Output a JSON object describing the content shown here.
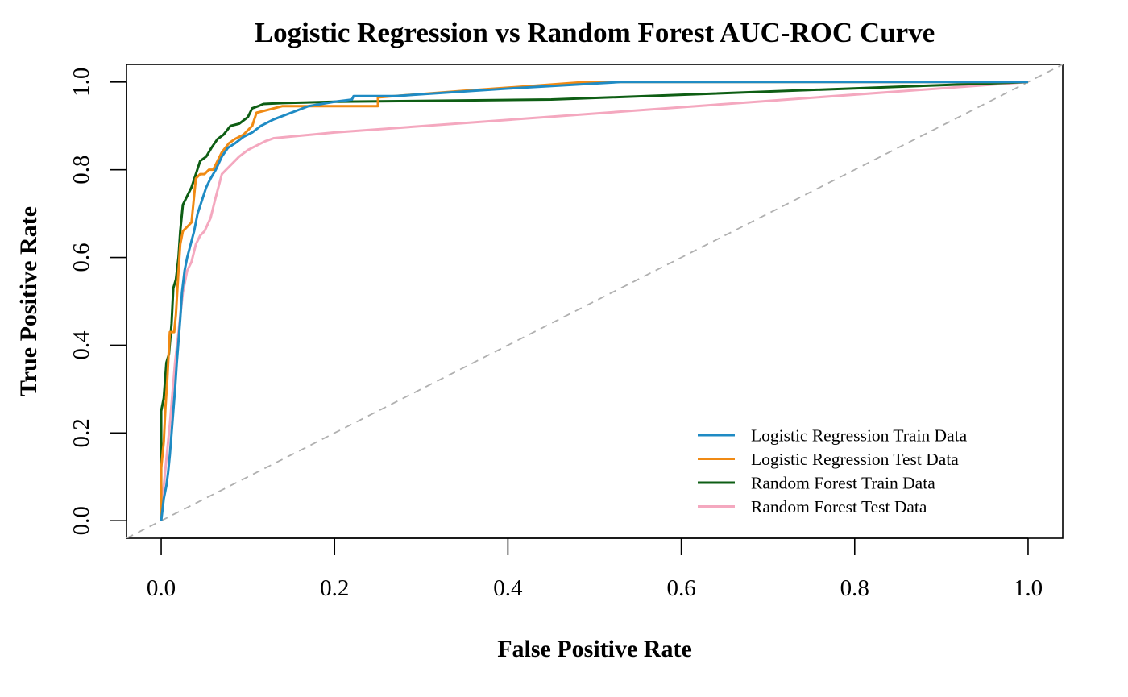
{
  "chart_data": {
    "type": "line",
    "title": "Logistic Regression vs Random Forest AUC-ROC Curve",
    "xlabel": "False Positive Rate",
    "ylabel": "True Positive Rate",
    "xlim": [
      -0.04,
      1.04
    ],
    "ylim": [
      -0.04,
      1.04
    ],
    "x_ticks": [
      "0.0",
      "0.2",
      "0.4",
      "0.6",
      "0.8",
      "1.0"
    ],
    "y_ticks": [
      "0.0",
      "0.2",
      "0.4",
      "0.6",
      "0.8",
      "1.0"
    ],
    "grid": false,
    "legend_position": "bottom-right",
    "reference_line": {
      "points": [
        [
          0,
          0
        ],
        [
          1,
          1
        ]
      ],
      "color": "#b0b0b0",
      "style": "dashed"
    },
    "series": [
      {
        "name": "Logistic Regression Train Data",
        "color": "#1f8bc4",
        "points": [
          [
            0,
            0
          ],
          [
            0.003,
            0.05
          ],
          [
            0.006,
            0.08
          ],
          [
            0.008,
            0.11
          ],
          [
            0.01,
            0.15
          ],
          [
            0.012,
            0.2
          ],
          [
            0.014,
            0.25
          ],
          [
            0.016,
            0.3
          ],
          [
            0.018,
            0.36
          ],
          [
            0.02,
            0.41
          ],
          [
            0.022,
            0.46
          ],
          [
            0.024,
            0.52
          ],
          [
            0.027,
            0.57
          ],
          [
            0.03,
            0.6
          ],
          [
            0.034,
            0.63
          ],
          [
            0.038,
            0.66
          ],
          [
            0.042,
            0.7
          ],
          [
            0.047,
            0.73
          ],
          [
            0.052,
            0.76
          ],
          [
            0.057,
            0.78
          ],
          [
            0.063,
            0.8
          ],
          [
            0.07,
            0.83
          ],
          [
            0.077,
            0.85
          ],
          [
            0.085,
            0.86
          ],
          [
            0.095,
            0.875
          ],
          [
            0.105,
            0.885
          ],
          [
            0.115,
            0.9
          ],
          [
            0.13,
            0.915
          ],
          [
            0.15,
            0.93
          ],
          [
            0.17,
            0.945
          ],
          [
            0.2,
            0.955
          ],
          [
            0.22,
            0.96
          ],
          [
            0.222,
            0.968
          ],
          [
            0.27,
            0.968
          ],
          [
            0.4,
            0.985
          ],
          [
            0.53,
            1.0
          ],
          [
            1,
            1
          ]
        ]
      },
      {
        "name": "Logistic Regression Test Data",
        "color": "#f08a14",
        "points": [
          [
            0,
            0
          ],
          [
            0,
            0.12
          ],
          [
            0.003,
            0.18
          ],
          [
            0.005,
            0.26
          ],
          [
            0.007,
            0.32
          ],
          [
            0.01,
            0.43
          ],
          [
            0.015,
            0.43
          ],
          [
            0.017,
            0.47
          ],
          [
            0.02,
            0.57
          ],
          [
            0.022,
            0.63
          ],
          [
            0.025,
            0.66
          ],
          [
            0.03,
            0.67
          ],
          [
            0.035,
            0.68
          ],
          [
            0.038,
            0.74
          ],
          [
            0.04,
            0.78
          ],
          [
            0.045,
            0.79
          ],
          [
            0.05,
            0.79
          ],
          [
            0.055,
            0.8
          ],
          [
            0.06,
            0.8
          ],
          [
            0.065,
            0.82
          ],
          [
            0.07,
            0.84
          ],
          [
            0.078,
            0.86
          ],
          [
            0.085,
            0.87
          ],
          [
            0.095,
            0.88
          ],
          [
            0.105,
            0.9
          ],
          [
            0.11,
            0.93
          ],
          [
            0.12,
            0.935
          ],
          [
            0.13,
            0.94
          ],
          [
            0.14,
            0.945
          ],
          [
            0.25,
            0.945
          ],
          [
            0.25,
            0.965
          ],
          [
            0.35,
            0.98
          ],
          [
            0.49,
            1.0
          ],
          [
            1,
            1
          ]
        ]
      },
      {
        "name": "Random Forest Train Data",
        "color": "#0e5e14",
        "points": [
          [
            0,
            0
          ],
          [
            0,
            0.25
          ],
          [
            0.003,
            0.28
          ],
          [
            0.006,
            0.36
          ],
          [
            0.009,
            0.38
          ],
          [
            0.012,
            0.45
          ],
          [
            0.014,
            0.53
          ],
          [
            0.017,
            0.55
          ],
          [
            0.02,
            0.6
          ],
          [
            0.022,
            0.66
          ],
          [
            0.025,
            0.72
          ],
          [
            0.03,
            0.74
          ],
          [
            0.035,
            0.76
          ],
          [
            0.04,
            0.79
          ],
          [
            0.045,
            0.82
          ],
          [
            0.052,
            0.83
          ],
          [
            0.058,
            0.85
          ],
          [
            0.065,
            0.87
          ],
          [
            0.072,
            0.88
          ],
          [
            0.08,
            0.9
          ],
          [
            0.09,
            0.905
          ],
          [
            0.1,
            0.92
          ],
          [
            0.105,
            0.94
          ],
          [
            0.112,
            0.945
          ],
          [
            0.118,
            0.95
          ],
          [
            0.14,
            0.952
          ],
          [
            0.2,
            0.955
          ],
          [
            0.45,
            0.96
          ],
          [
            1,
            1
          ]
        ]
      },
      {
        "name": "Random Forest Test Data",
        "color": "#f4a8bf",
        "points": [
          [
            0,
            0
          ],
          [
            0.003,
            0.08
          ],
          [
            0.006,
            0.14
          ],
          [
            0.01,
            0.22
          ],
          [
            0.013,
            0.29
          ],
          [
            0.016,
            0.36
          ],
          [
            0.02,
            0.43
          ],
          [
            0.025,
            0.52
          ],
          [
            0.03,
            0.57
          ],
          [
            0.035,
            0.59
          ],
          [
            0.04,
            0.63
          ],
          [
            0.045,
            0.65
          ],
          [
            0.05,
            0.66
          ],
          [
            0.057,
            0.69
          ],
          [
            0.062,
            0.73
          ],
          [
            0.07,
            0.79
          ],
          [
            0.08,
            0.81
          ],
          [
            0.09,
            0.83
          ],
          [
            0.1,
            0.845
          ],
          [
            0.11,
            0.855
          ],
          [
            0.12,
            0.865
          ],
          [
            0.13,
            0.872
          ],
          [
            0.2,
            0.885
          ],
          [
            1,
            1
          ]
        ]
      }
    ]
  }
}
